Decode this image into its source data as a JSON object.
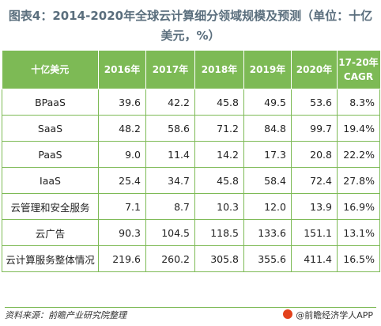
{
  "title": "图表4：2014-2020年全球云计算细分领域规模及预测（单位：十亿美元，%）",
  "table": {
    "headers": [
      "十亿美元",
      "2016年",
      "2017年",
      "2018年",
      "2019年",
      "2020年",
      "17-20年CAGR"
    ],
    "rows": [
      [
        "BPaaS",
        "39.6",
        "42.2",
        "45.8",
        "49.5",
        "53.6",
        "8.3%"
      ],
      [
        "SaaS",
        "48.2",
        "58.6",
        "71.2",
        "84.8",
        "99.7",
        "19.4%"
      ],
      [
        "PaaS",
        "9.0",
        "11.4",
        "14.2",
        "17.3",
        "20.8",
        "22.2%"
      ],
      [
        "IaaS",
        "25.4",
        "34.7",
        "45.8",
        "58.4",
        "72.4",
        "27.8%"
      ],
      [
        "云管理和安全服务",
        "7.1",
        "8.7",
        "10.3",
        "12.0",
        "13.9",
        "16.9%"
      ],
      [
        "云广告",
        "90.3",
        "104.5",
        "118.5",
        "133.6",
        "151.1",
        "13.1%"
      ],
      [
        "云计算服务整体情况",
        "219.6",
        "260.2",
        "305.8",
        "355.6",
        "411.4",
        "16.5%"
      ]
    ]
  },
  "footer": {
    "source": "资料来源：前瞻产业研究院整理",
    "brand": "@前瞻经济学人APP"
  },
  "colors": {
    "header_bg": "#7dba55",
    "border": "#7dba55",
    "title": "#5a6e7d"
  },
  "chart_data": {
    "type": "table",
    "title": "图表4：2014-2020年全球云计算细分领域规模及预测（单位：十亿美元，%）",
    "columns": [
      "十亿美元",
      "2016年",
      "2017年",
      "2018年",
      "2019年",
      "2020年",
      "17-20年CAGR"
    ],
    "rows": [
      {
        "name": "BPaaS",
        "values": [
          39.6,
          42.2,
          45.8,
          49.5,
          53.6
        ],
        "cagr": "8.3%"
      },
      {
        "name": "SaaS",
        "values": [
          48.2,
          58.6,
          71.2,
          84.8,
          99.7
        ],
        "cagr": "19.4%"
      },
      {
        "name": "PaaS",
        "values": [
          9.0,
          11.4,
          14.2,
          17.3,
          20.8
        ],
        "cagr": "22.2%"
      },
      {
        "name": "IaaS",
        "values": [
          25.4,
          34.7,
          45.8,
          58.4,
          72.4
        ],
        "cagr": "27.8%"
      },
      {
        "name": "云管理和安全服务",
        "values": [
          7.1,
          8.7,
          10.3,
          12.0,
          13.9
        ],
        "cagr": "16.9%"
      },
      {
        "name": "云广告",
        "values": [
          90.3,
          104.5,
          118.5,
          133.6,
          151.1
        ],
        "cagr": "13.1%"
      },
      {
        "name": "云计算服务整体情况",
        "values": [
          219.6,
          260.2,
          305.8,
          355.6,
          411.4
        ],
        "cagr": "16.5%"
      }
    ]
  }
}
